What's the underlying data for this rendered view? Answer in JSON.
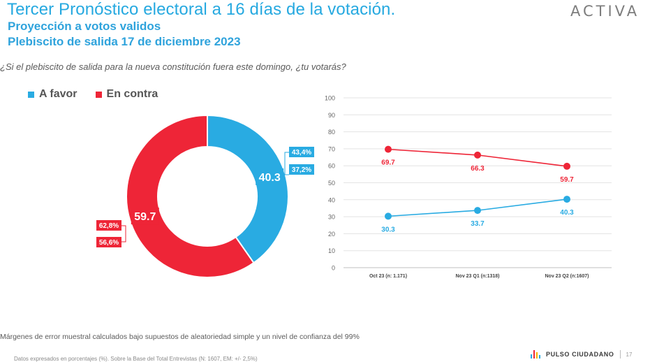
{
  "header": {
    "title": "Tercer Pronóstico electoral a 16 días de la votación.",
    "subtitle1": "Proyección a votos validos",
    "subtitle2": "Plebiscito de salida 17 de diciembre 2023",
    "logo_text": "ACTIVA"
  },
  "question": "¿Si el plebiscito de salida para la nueva constitución fuera este domingo, ¿tu votarás?",
  "legend": [
    {
      "label": "A favor",
      "color": "#29abe2"
    },
    {
      "label": "En contra",
      "color": "#ee2537"
    }
  ],
  "chart_data": [
    {
      "type": "pie",
      "variant": "donut",
      "slices": [
        {
          "name": "A favor",
          "value": 40.3,
          "label": "40.3",
          "color": "#29abe2",
          "range_high": "43,4%",
          "range_low": "37,2%"
        },
        {
          "name": "En contra",
          "value": 59.7,
          "label": "59.7",
          "color": "#ee2537",
          "range_high": "62,8%",
          "range_low": "56,6%"
        }
      ]
    },
    {
      "type": "line",
      "categories": [
        "Oct 23 (n: 1.171)",
        "Nov 23 Q1 (n:1318)",
        "Nov 23 Q2 (n:1607)"
      ],
      "series": [
        {
          "name": "En contra",
          "color": "#ee2537",
          "values": [
            69.7,
            66.3,
            59.7
          ]
        },
        {
          "name": "A favor",
          "color": "#29abe2",
          "values": [
            30.3,
            33.7,
            40.3
          ]
        }
      ],
      "ylim": [
        0,
        100
      ],
      "yticks": [
        0,
        10,
        20,
        30,
        40,
        50,
        60,
        70,
        80,
        90,
        100
      ],
      "grid": true
    }
  ],
  "footnote": "Márgenes de error muestral calculados bajo supuestos de aleatoriedad simple y un nivel de confianza del 99%",
  "footnote2": "Datos expresados en porcentajes (%). Sobre la Base del Total Entrevistas (N: 1607, EM: +/- 2,5%)",
  "brand": {
    "name": "PULSO CIUDADANO",
    "page": "17"
  }
}
